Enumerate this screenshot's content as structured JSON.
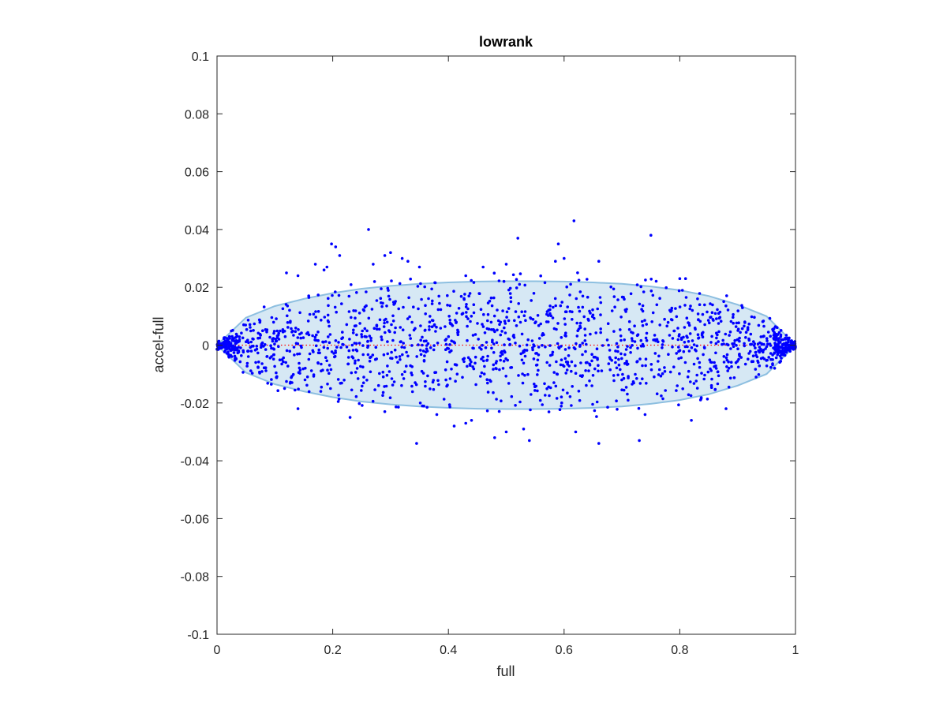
{
  "chart_data": {
    "type": "scatter",
    "title": "lowrank",
    "xlabel": "full",
    "ylabel": "accel-full",
    "xlim": [
      0,
      1
    ],
    "ylim": [
      -0.1,
      0.1
    ],
    "xticks": [
      0,
      0.2,
      0.4,
      0.6,
      0.8,
      1
    ],
    "xtick_labels": [
      "0",
      "0.2",
      "0.4",
      "0.6",
      "0.8",
      "1"
    ],
    "yticks": [
      -0.1,
      -0.08,
      -0.06,
      -0.04,
      -0.02,
      0,
      0.02,
      0.04,
      0.06,
      0.08,
      0.1
    ],
    "ytick_labels": [
      "-0.1",
      "-0.08",
      "-0.06",
      "-0.04",
      "-0.02",
      "0",
      "0.02",
      "0.04",
      "0.06",
      "0.08",
      "0.1"
    ],
    "grid": false,
    "colors": {
      "points": "#0000ff",
      "band_fill": "#d6e8f4",
      "band_edge": "#8dbfe0",
      "reference_line": "#ff0000"
    },
    "reference_line": {
      "y": 0,
      "style": "dotted"
    },
    "band": {
      "description_free": true,
      "x": [
        0,
        0.05,
        0.1,
        0.15,
        0.2,
        0.25,
        0.3,
        0.35,
        0.4,
        0.45,
        0.5,
        0.55,
        0.6,
        0.65,
        0.7,
        0.75,
        0.8,
        0.85,
        0.9,
        0.95,
        1
      ],
      "half_width": [
        0,
        0.0095,
        0.0135,
        0.016,
        0.018,
        0.0195,
        0.0205,
        0.0212,
        0.0217,
        0.022,
        0.0221,
        0.0221,
        0.022,
        0.0217,
        0.0212,
        0.0203,
        0.019,
        0.017,
        0.014,
        0.01,
        0
      ]
    },
    "outliers": [
      {
        "x": 0.198,
        "y": 0.035
      },
      {
        "x": 0.205,
        "y": 0.034
      },
      {
        "x": 0.212,
        "y": 0.031
      },
      {
        "x": 0.262,
        "y": 0.04
      },
      {
        "x": 0.29,
        "y": 0.031
      },
      {
        "x": 0.3,
        "y": 0.032
      },
      {
        "x": 0.32,
        "y": 0.03
      },
      {
        "x": 0.33,
        "y": 0.029
      },
      {
        "x": 0.27,
        "y": 0.028
      },
      {
        "x": 0.17,
        "y": 0.028
      },
      {
        "x": 0.185,
        "y": 0.026
      },
      {
        "x": 0.19,
        "y": 0.027
      },
      {
        "x": 0.14,
        "y": 0.024
      },
      {
        "x": 0.12,
        "y": 0.025
      },
      {
        "x": 0.52,
        "y": 0.037
      },
      {
        "x": 0.59,
        "y": 0.035
      },
      {
        "x": 0.6,
        "y": 0.03
      },
      {
        "x": 0.585,
        "y": 0.029
      },
      {
        "x": 0.617,
        "y": 0.043
      },
      {
        "x": 0.75,
        "y": 0.038
      },
      {
        "x": 0.66,
        "y": 0.029
      },
      {
        "x": 0.46,
        "y": 0.027
      },
      {
        "x": 0.5,
        "y": 0.028
      },
      {
        "x": 0.8,
        "y": 0.023
      },
      {
        "x": 0.81,
        "y": 0.023
      },
      {
        "x": 0.35,
        "y": 0.027
      },
      {
        "x": 0.43,
        "y": 0.024
      },
      {
        "x": 0.345,
        "y": -0.034
      },
      {
        "x": 0.41,
        "y": -0.028
      },
      {
        "x": 0.43,
        "y": -0.027
      },
      {
        "x": 0.48,
        "y": -0.032
      },
      {
        "x": 0.5,
        "y": -0.03
      },
      {
        "x": 0.53,
        "y": -0.029
      },
      {
        "x": 0.54,
        "y": -0.033
      },
      {
        "x": 0.62,
        "y": -0.03
      },
      {
        "x": 0.66,
        "y": -0.034
      },
      {
        "x": 0.73,
        "y": -0.033
      },
      {
        "x": 0.82,
        "y": -0.026
      },
      {
        "x": 0.14,
        "y": -0.022
      },
      {
        "x": 0.23,
        "y": -0.025
      },
      {
        "x": 0.29,
        "y": -0.023
      },
      {
        "x": 0.44,
        "y": -0.026
      },
      {
        "x": 0.38,
        "y": -0.024
      },
      {
        "x": 0.74,
        "y": -0.024
      },
      {
        "x": 0.88,
        "y": -0.022
      }
    ],
    "generated_points": {
      "count": 1700,
      "seed": 7
    }
  }
}
